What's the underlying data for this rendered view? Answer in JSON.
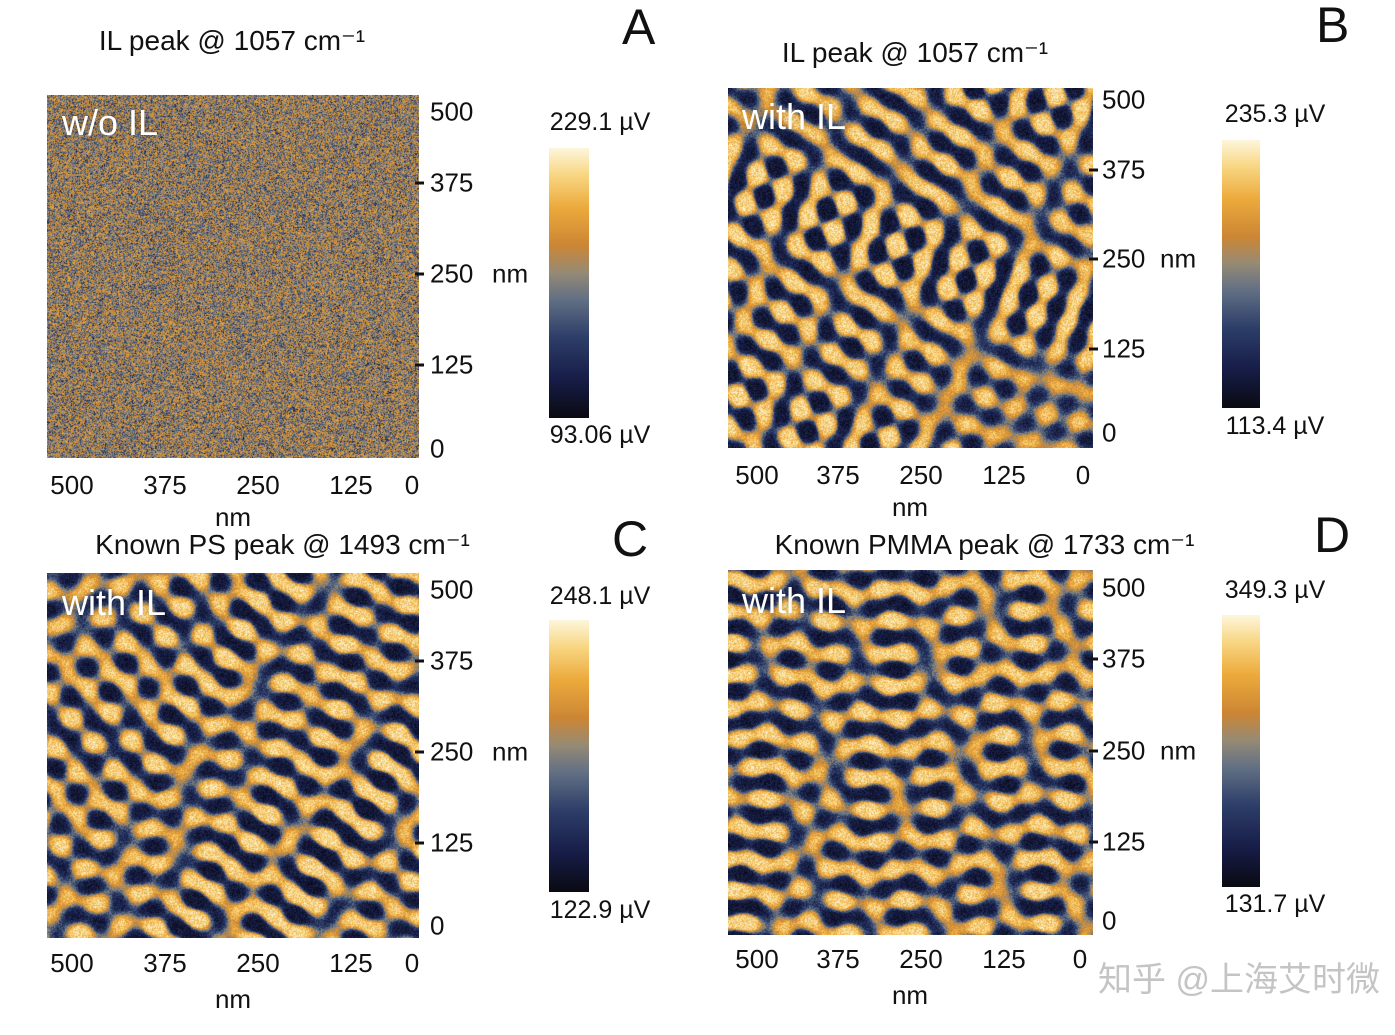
{
  "axis": {
    "unit": "nm",
    "ticks": [
      "500",
      "375",
      "250",
      "125",
      "0"
    ]
  },
  "panels": [
    {
      "letter": "A",
      "title": "IL peak @ 1057 cm⁻¹",
      "overlay": "w/o IL",
      "colorbar": {
        "max": "229.1 µV",
        "min": "93.06 µV"
      }
    },
    {
      "letter": "B",
      "title": "IL peak @ 1057 cm⁻¹",
      "overlay": "with IL",
      "colorbar": {
        "max": "235.3 µV",
        "min": "113.4 µV"
      }
    },
    {
      "letter": "C",
      "title": "Known PS peak @ 1493 cm⁻¹",
      "overlay": "with IL",
      "colorbar": {
        "max": "248.1 µV",
        "min": "122.9 µV"
      }
    },
    {
      "letter": "D",
      "title": "Known PMMA peak @ 1733 cm⁻¹",
      "overlay": "with IL",
      "colorbar": {
        "max": "349.3 µV",
        "min": "131.7 µV"
      }
    }
  ],
  "watermark": "知乎 @上海艾时微",
  "chart_data": [
    {
      "type": "heatmap",
      "panel": "A",
      "title": "IL peak @ 1057 cm⁻¹",
      "annotation": "w/o IL",
      "xlabel": "nm",
      "ylabel": "nm",
      "x_ticks": [
        500,
        375,
        250,
        125,
        0
      ],
      "y_ticks": [
        500,
        375,
        250,
        125,
        0
      ],
      "x_range": [
        500,
        0
      ],
      "y_range": [
        0,
        500
      ],
      "value_unit": "µV",
      "value_min": 93.06,
      "value_max": 229.1,
      "pattern_type": "speckle-noise",
      "description": "uniform random speckle, no domain contrast",
      "colormap": "black→navy→slate-blue→orange→pale-yellow"
    },
    {
      "type": "heatmap",
      "panel": "B",
      "title": "IL peak @ 1057 cm⁻¹",
      "annotation": "with IL",
      "xlabel": "nm",
      "ylabel": "nm",
      "x_ticks": [
        500,
        375,
        250,
        125,
        0
      ],
      "y_ticks": [
        500,
        375,
        250,
        125,
        0
      ],
      "x_range": [
        500,
        0
      ],
      "y_range": [
        0,
        500
      ],
      "value_unit": "µV",
      "value_min": 113.4,
      "value_max": 235.3,
      "pattern_type": "fingerprint",
      "description": "lamellar fingerprint stripe domains, period ≈ 40 nm",
      "colormap": "black→navy→slate-blue→orange→pale-yellow"
    },
    {
      "type": "heatmap",
      "panel": "C",
      "title": "Known PS peak @ 1493 cm⁻¹",
      "annotation": "with IL",
      "xlabel": "nm",
      "ylabel": "nm",
      "x_ticks": [
        500,
        375,
        250,
        125,
        0
      ],
      "y_ticks": [
        500,
        375,
        250,
        125,
        0
      ],
      "x_range": [
        500,
        0
      ],
      "y_range": [
        0,
        500
      ],
      "value_unit": "µV",
      "value_min": 122.9,
      "value_max": 248.1,
      "pattern_type": "fingerprint",
      "description": "lamellar fingerprint stripe domains, period ≈ 40 nm",
      "colormap": "black→navy→slate-blue→orange→pale-yellow"
    },
    {
      "type": "heatmap",
      "panel": "D",
      "title": "Known PMMA peak @ 1733 cm⁻¹",
      "annotation": "with IL",
      "xlabel": "nm",
      "ylabel": "nm",
      "x_ticks": [
        500,
        375,
        250,
        125,
        0
      ],
      "y_ticks": [
        500,
        375,
        250,
        125,
        0
      ],
      "x_range": [
        500,
        0
      ],
      "y_range": [
        0,
        500
      ],
      "value_unit": "µV",
      "value_min": 131.7,
      "value_max": 349.3,
      "pattern_type": "fingerprint",
      "description": "lamellar fingerprint stripe domains, period ≈ 40 nm",
      "colormap": "black→navy→slate-blue→orange→pale-yellow"
    }
  ]
}
